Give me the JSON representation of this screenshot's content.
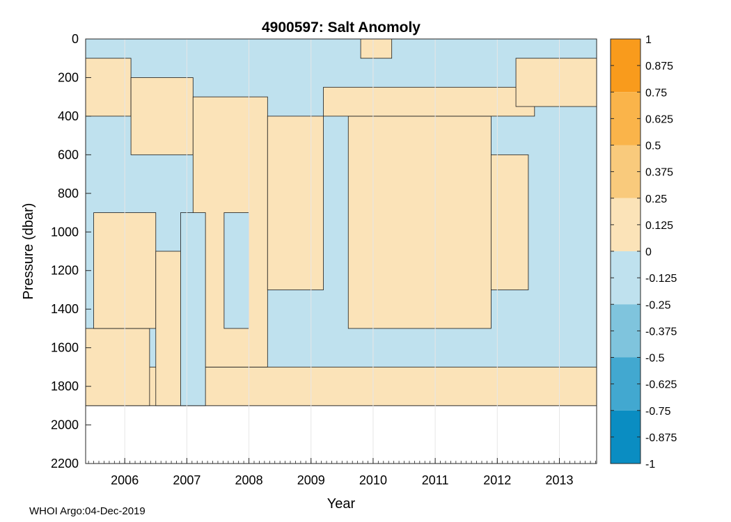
{
  "chart_data": {
    "type": "heatmap",
    "title": "4900597: Salt Anomoly",
    "xlabel": "Year",
    "ylabel": "Pressure (dbar)",
    "x_ticks": [
      "2006",
      "2007",
      "2008",
      "2009",
      "2010",
      "2011",
      "2012",
      "2013"
    ],
    "xlim": [
      2005.37,
      2013.6
    ],
    "y_ticks": [
      0,
      200,
      400,
      600,
      800,
      1000,
      1200,
      1400,
      1600,
      1800,
      2000,
      2200
    ],
    "ylim": [
      0,
      2200
    ],
    "y_reversed": true,
    "colorbar": {
      "ticks": [
        "1",
        "0.875",
        "0.75",
        "0.625",
        "0.5",
        "0.375",
        "0.25",
        "0.125",
        "0",
        "-0.125",
        "-0.25",
        "-0.375",
        "-0.5",
        "-0.625",
        "-0.75",
        "-0.875",
        "-1"
      ],
      "range": [
        -1,
        1
      ],
      "levels": [
        {
          "from": 0.75,
          "to": 1.0,
          "color": "#f99b1c"
        },
        {
          "from": 0.5,
          "to": 0.75,
          "color": "#fab44a"
        },
        {
          "from": 0.25,
          "to": 0.5,
          "color": "#f9ca7c"
        },
        {
          "from": 0.0,
          "to": 0.25,
          "color": "#fbe3b8"
        },
        {
          "from": -0.25,
          "to": 0.0,
          "color": "#bfe1ee"
        },
        {
          "from": -0.5,
          "to": -0.25,
          "color": "#7fc4dd"
        },
        {
          "from": -0.75,
          "to": -0.5,
          "color": "#42a8d0"
        },
        {
          "from": -1.0,
          "to": -0.75,
          "color": "#0a8dc2"
        }
      ]
    },
    "regions": [
      {
        "level": "negative",
        "x": [
          2005.37,
          2013.6
        ],
        "y": [
          0,
          1900
        ]
      },
      {
        "level": "positive",
        "x": [
          2005.37,
          2013.6
        ],
        "y": [
          1700,
          1900
        ]
      },
      {
        "level": "positive",
        "x": [
          2005.37,
          2006.4
        ],
        "y": [
          1500,
          1900
        ]
      },
      {
        "level": "positive",
        "x": [
          2005.37,
          2006.1
        ],
        "y": [
          100,
          400
        ]
      },
      {
        "level": "positive",
        "x": [
          2006.1,
          2007.1
        ],
        "y": [
          200,
          600
        ]
      },
      {
        "level": "positive",
        "x": [
          2005.5,
          2006.5
        ],
        "y": [
          900,
          1500
        ]
      },
      {
        "level": "positive",
        "x": [
          2006.5,
          2007.0
        ],
        "y": [
          1100,
          1900
        ]
      },
      {
        "level": "positive",
        "x": [
          2007.1,
          2008.3
        ],
        "y": [
          300,
          1700
        ]
      },
      {
        "level": "positive",
        "x": [
          2008.3,
          2009.2
        ],
        "y": [
          400,
          1300
        ]
      },
      {
        "level": "positive",
        "x": [
          2009.6,
          2011.9
        ],
        "y": [
          400,
          1500
        ]
      },
      {
        "level": "positive",
        "x": [
          2009.2,
          2012.6
        ],
        "y": [
          250,
          400
        ]
      },
      {
        "level": "positive",
        "x": [
          2012.3,
          2013.6
        ],
        "y": [
          100,
          350
        ]
      },
      {
        "level": "positive",
        "x": [
          2009.8,
          2010.3
        ],
        "y": [
          0,
          100
        ]
      },
      {
        "level": "positive",
        "x": [
          2011.9,
          2012.5
        ],
        "y": [
          600,
          1300
        ]
      },
      {
        "level": "negative",
        "x": [
          2007.6,
          2008.0
        ],
        "y": [
          900,
          1500
        ]
      },
      {
        "level": "negative",
        "x": [
          2006.9,
          2007.3
        ],
        "y": [
          900,
          1900
        ]
      }
    ]
  },
  "footer": "WHOI Argo:04-Dec-2019"
}
